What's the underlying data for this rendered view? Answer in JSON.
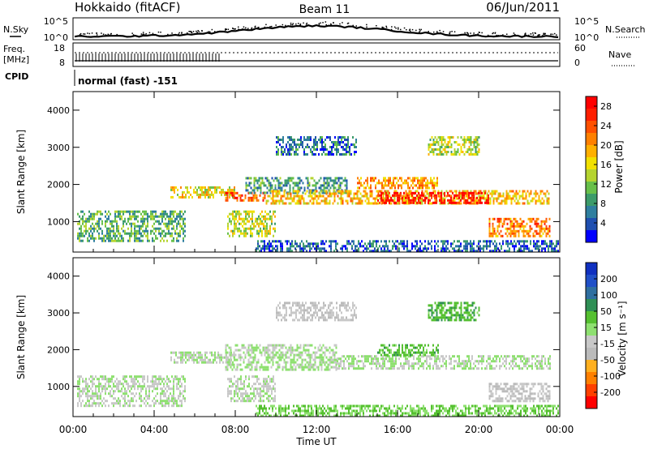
{
  "header": {
    "title_left": "Hokkaido (fitACF)",
    "title_center": "Beam 11",
    "title_right": "06/Jun/2011"
  },
  "summary_panel": {
    "nsky_label": "N.Sky",
    "nsky_ticks": [
      "10^5",
      "10^0"
    ],
    "nsearch_label": "N.Search",
    "nsearch_ticks": [
      "10^5",
      "10^0"
    ],
    "freq_label_1": "Freq.",
    "freq_label_2": "[MHz]",
    "freq_ticks": [
      "18",
      "8"
    ],
    "nave_label": "Nave",
    "nave_ticks": [
      "60",
      "0"
    ],
    "cpid_label": "CPID",
    "cpid_text": "normal (fast) -151"
  },
  "colors": {
    "power_scale": [
      "#0000ff",
      "#1f4fb0",
      "#2f7f9f",
      "#3c9b6a",
      "#68c04a",
      "#b5d430",
      "#f1e000",
      "#ffb000",
      "#ff8000",
      "#ff5000",
      "#ff1e00",
      "#ff0000"
    ],
    "velocity_scale": [
      "#1030c0",
      "#2050c8",
      "#2f6fa0",
      "#2f8f55",
      "#55c030",
      "#8ee070",
      "#c8c8c8",
      "#bbbbbb",
      "#ffb020",
      "#ff8000",
      "#ff4000",
      "#ff0000"
    ]
  },
  "chart_data": [
    {
      "type": "heatmap",
      "title": "Power",
      "ylabel": "Slant Range [km]",
      "xlabel": "",
      "y_ticks": [
        1000,
        2000,
        3000,
        4000
      ],
      "ylim": [
        180,
        4500
      ],
      "x_ticks": [
        "00:00",
        "04:00",
        "08:00",
        "12:00",
        "16:00",
        "20:00",
        "00:00"
      ],
      "xlim_hours": [
        0,
        24
      ],
      "colorbar_label": "Power [dB]",
      "colorbar_ticks": [
        4,
        8,
        12,
        16,
        20,
        24,
        28
      ],
      "colorbar_range": [
        0,
        30
      ],
      "echo_bands": [
        {
          "t0": 0.2,
          "t1": 5.5,
          "r0": 450,
          "r1": 1300,
          "level": 10
        },
        {
          "t0": 4.8,
          "t1": 8.0,
          "r0": 1650,
          "r1": 1950,
          "level": 16
        },
        {
          "t0": 7.5,
          "t1": 9.5,
          "r0": 1550,
          "r1": 1800,
          "level": 24
        },
        {
          "t0": 7.6,
          "t1": 10.0,
          "r0": 600,
          "r1": 1300,
          "level": 14
        },
        {
          "t0": 8.5,
          "t1": 13.5,
          "r0": 1800,
          "r1": 2200,
          "level": 8
        },
        {
          "t0": 9.5,
          "t1": 23.5,
          "r0": 1500,
          "r1": 1850,
          "level": 18
        },
        {
          "t0": 15.0,
          "t1": 20.5,
          "r0": 1500,
          "r1": 1800,
          "level": 28
        },
        {
          "t0": 14.0,
          "t1": 18.0,
          "r0": 1900,
          "r1": 2200,
          "level": 20
        },
        {
          "t0": 10.0,
          "t1": 14.0,
          "r0": 2800,
          "r1": 3300,
          "level": 6
        },
        {
          "t0": 17.5,
          "t1": 20.0,
          "r0": 2800,
          "r1": 3300,
          "level": 14
        },
        {
          "t0": 20.5,
          "t1": 23.5,
          "r0": 600,
          "r1": 1100,
          "level": 22
        },
        {
          "t0": 9.0,
          "t1": 23.9,
          "r0": 200,
          "r1": 500,
          "level": 5
        }
      ]
    },
    {
      "type": "heatmap",
      "title": "Velocity",
      "ylabel": "Slant Range [km]",
      "xlabel": "Time UT",
      "y_ticks": [
        1000,
        2000,
        3000,
        4000
      ],
      "ylim": [
        180,
        4500
      ],
      "x_ticks": [
        "00:00",
        "04:00",
        "08:00",
        "12:00",
        "16:00",
        "20:00",
        "00:00"
      ],
      "xlim_hours": [
        0,
        24
      ],
      "colorbar_label": "Velocity [m s⁻¹]",
      "colorbar_ticks": [
        200,
        100,
        50,
        15,
        -15,
        -50,
        -100,
        -200
      ],
      "colorbar_range": [
        -250,
        250
      ],
      "echo_bands": [
        {
          "t0": 0.2,
          "t1": 5.5,
          "r0": 450,
          "r1": 1300,
          "level": -5
        },
        {
          "t0": 4.8,
          "t1": 8.0,
          "r0": 1650,
          "r1": 1950,
          "level": 0
        },
        {
          "t0": 7.5,
          "t1": 13.0,
          "r0": 1450,
          "r1": 2150,
          "level": 5
        },
        {
          "t0": 7.6,
          "t1": 10.0,
          "r0": 600,
          "r1": 1300,
          "level": -10
        },
        {
          "t0": 13.0,
          "t1": 23.5,
          "r0": 1500,
          "r1": 1850,
          "level": 2
        },
        {
          "t0": 15.0,
          "t1": 18.0,
          "r0": 1850,
          "r1": 2150,
          "level": 60
        },
        {
          "t0": 10.0,
          "t1": 14.0,
          "r0": 2800,
          "r1": 3300,
          "level": -30
        },
        {
          "t0": 17.5,
          "t1": 20.0,
          "r0": 2800,
          "r1": 3300,
          "level": 70
        },
        {
          "t0": 20.5,
          "t1": 23.5,
          "r0": 600,
          "r1": 1100,
          "level": -40
        },
        {
          "t0": 9.0,
          "t1": 23.9,
          "r0": 200,
          "r1": 500,
          "level": 40
        }
      ]
    }
  ]
}
